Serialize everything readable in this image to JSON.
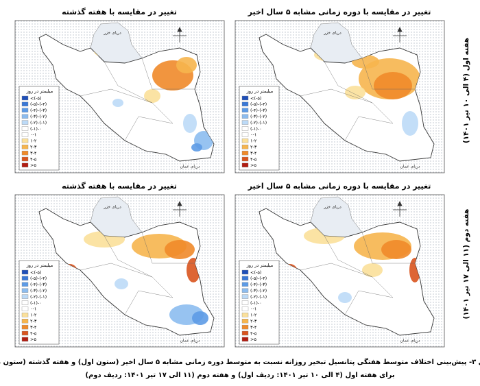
{
  "figure": {
    "panels": [
      {
        "title": "تغییر در مقایسه با هفته گذشته"
      },
      {
        "title": "تغییر در مقایسه با دوره زمانی مشابه ۵ سال اخیر"
      },
      {
        "title": "تغییر در مقایسه با هفته گذشته"
      },
      {
        "title": "تغییر در مقایسه با دوره زمانی مشابه ۵ سال اخیر"
      }
    ],
    "row_labels": [
      "هفته اول (۴ الی ۱۰ تیر ۱۴۰۱)",
      "هفته دوم (۱۱ الی ۱۷ تیر ۱۴۰۱)"
    ],
    "sea_labels": [
      "دریای خزر",
      "دریای عمان"
    ],
    "legend": {
      "title": "میلیمتر در روز",
      "items": [
        {
          "label": "<(-۵)",
          "color": "#1f4fb8"
        },
        {
          "label": "(-۵)-(-۴)",
          "color": "#3a78d6"
        },
        {
          "label": "(-۴)-(-۳)",
          "color": "#5d9be6"
        },
        {
          "label": "(-۳)-(-۲)",
          "color": "#8cbcef"
        },
        {
          "label": "(-۲)-(-۱)",
          "color": "#bcdaf7"
        },
        {
          "label": "(-۱)-۰",
          "color": "#ffffff"
        },
        {
          "label": "۰-۱",
          "color": "#ffffff"
        },
        {
          "label": "۱-۲",
          "color": "#fbe09a"
        },
        {
          "label": "۲-۳",
          "color": "#f6b54e"
        },
        {
          "label": "۳-۴",
          "color": "#ef8a2a"
        },
        {
          "label": "۴-۵",
          "color": "#d9541e"
        },
        {
          "label": ">۵",
          "color": "#b01d12"
        }
      ]
    },
    "caption": [
      "شکل ۳- پیش‌بینی اختلاف متوسط هفتگی پتانسیل تبخیر روزانه نسبت به متوسط دوره زمانی مشابه ۵ سال اخیر (ستون اول) و هفته گذشته (ستون دوم)",
      "برای هفته اول (۴ الی ۱۰ تیر ۱۴۰۱: ردیف اول) و هفته دوم (۱۱ الی ۱۷ تیر ۱۴۰۱: ردیف دوم)"
    ]
  }
}
